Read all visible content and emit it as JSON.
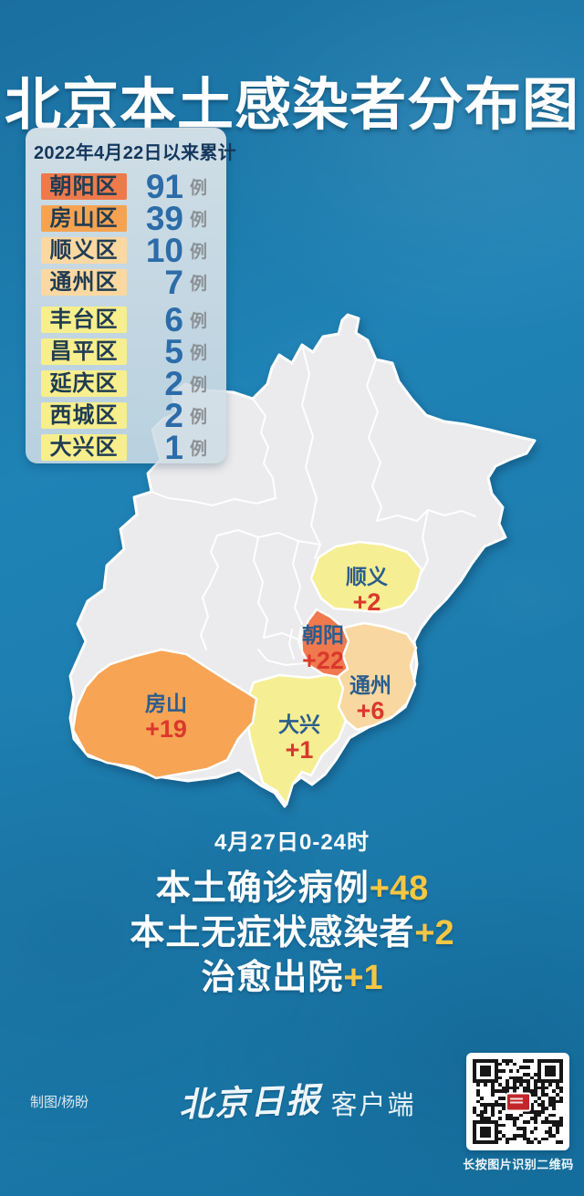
{
  "title": "北京本土感染者分布图",
  "legend": {
    "header": "2022年4月22日以来累计",
    "unit": "例",
    "rows": [
      {
        "district": "朝阳区",
        "count": "91",
        "tier": "t1"
      },
      {
        "district": "房山区",
        "count": "39",
        "tier": "t2"
      },
      {
        "district": "顺义区",
        "count": "10",
        "tier": "t3"
      },
      {
        "district": "通州区",
        "count": "7",
        "tier": "t3"
      },
      {
        "district": "丰台区",
        "count": "6",
        "tier": "t4"
      },
      {
        "district": "昌平区",
        "count": "5",
        "tier": "t4"
      },
      {
        "district": "延庆区",
        "count": "2",
        "tier": "t4"
      },
      {
        "district": "西城区",
        "count": "2",
        "tier": "t4"
      },
      {
        "district": "大兴区",
        "count": "1",
        "tier": "t4"
      }
    ]
  },
  "map": {
    "labels": [
      {
        "district": "顺义",
        "delta": "+2"
      },
      {
        "district": "朝阳",
        "delta": "+22"
      },
      {
        "district": "通州",
        "delta": "+6"
      },
      {
        "district": "房山",
        "delta": "+19"
      },
      {
        "district": "大兴",
        "delta": "+1"
      }
    ]
  },
  "daily": {
    "date_line": "4月27日0-24时",
    "stats": [
      {
        "label": "本土确诊病例",
        "delta": "+48"
      },
      {
        "label": "本土无症状感染者",
        "delta": "+2"
      },
      {
        "label": "治愈出院",
        "delta": "+1"
      }
    ]
  },
  "footer": {
    "credit": "制图/杨盼",
    "brand_script": "北京日报",
    "brand_suffix": "客户端",
    "qr_caption": "长按图片识别二维码"
  },
  "colors": {
    "background_blue": "#1f83b6",
    "tier1_orange_red": "#ee7a4c",
    "tier2_orange": "#f5a351",
    "tier3_peach": "#fbd8a1",
    "tier4_yellow": "#f7ee8d",
    "map_gray": "#ebebed",
    "district_name_blue": "#2b5d8c",
    "delta_red": "#da382b",
    "count_blue": "#2c6ca8",
    "stat_gold": "#f5c643"
  },
  "chart_data": {
    "type": "heatmap",
    "title": "北京本土感染者分布图",
    "cumulative_since": "2022年4月22日以来累计",
    "categories": [
      "朝阳区",
      "房山区",
      "顺义区",
      "通州区",
      "丰台区",
      "昌平区",
      "延庆区",
      "西城区",
      "大兴区"
    ],
    "values": [
      91,
      39,
      10,
      7,
      6,
      5,
      2,
      2,
      1
    ],
    "daily_date": "4月27日0-24时",
    "daily_new_by_district": {
      "朝阳": 22,
      "房山": 19,
      "通州": 6,
      "顺义": 2,
      "大兴": 1
    },
    "daily_totals": {
      "本土确诊病例": 48,
      "本土无症状感染者": 2,
      "治愈出院": 1
    }
  }
}
